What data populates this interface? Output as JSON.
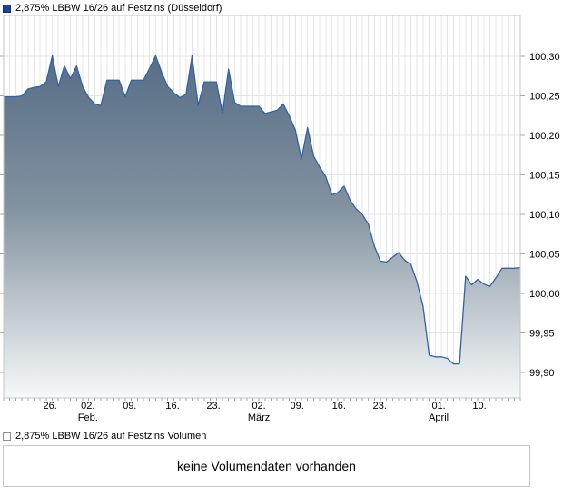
{
  "header": {
    "title": "2,875% LBBW 16/26 auf Festzins (Düsseldorf)"
  },
  "volume": {
    "legend_label": "2,875% LBBW 16/26 auf Festzins Volumen",
    "message": "keine Volumendaten vorhanden"
  },
  "colors": {
    "price_swatch": "#1e419b",
    "price_swatch_border": "#132d74",
    "volume_swatch": "#ffffff",
    "volume_swatch_border": "#8f8f8f",
    "line": "#3263a8",
    "fill_top": "#546c85",
    "fill_mid": "#8292a0",
    "fill_bottom": "#f7f9f9",
    "grid": "#e4e4e4",
    "border": "#c6c6c6",
    "tick": "#a8a8a8",
    "label_text": "#000000"
  },
  "chart_data": {
    "type": "area",
    "title": "2,875% LBBW 16/26 auf Festzins (Düsseldorf)",
    "x_unit": "daily dates, late January to mid April",
    "ylabel": "price (percent)",
    "grid": true,
    "legend_position": "top-left",
    "ylim": [
      99.868,
      100.352
    ],
    "y_ticks": [
      {
        "label": "100,30",
        "value": 100.3
      },
      {
        "label": "100,25",
        "value": 100.25
      },
      {
        "label": "100,20",
        "value": 100.2
      },
      {
        "label": "100,15",
        "value": 100.15
      },
      {
        "label": "100,10",
        "value": 100.1
      },
      {
        "label": "100,05",
        "value": 100.05
      },
      {
        "label": "100,00",
        "value": 100.0
      },
      {
        "label": "99,95",
        "value": 99.95
      },
      {
        "label": "99,90",
        "value": 99.9
      }
    ],
    "x_ticks": [
      {
        "label": "26.",
        "month": "",
        "pos": 0.09
      },
      {
        "label": "02.",
        "month": "Feb.",
        "pos": 0.163
      },
      {
        "label": "09.",
        "month": "",
        "pos": 0.244
      },
      {
        "label": "16.",
        "month": "",
        "pos": 0.327
      },
      {
        "label": "23.",
        "month": "",
        "pos": 0.406
      },
      {
        "label": "02.",
        "month": "März",
        "pos": 0.494
      },
      {
        "label": "09.",
        "month": "",
        "pos": 0.568
      },
      {
        "label": "16.",
        "month": "",
        "pos": 0.649
      },
      {
        "label": "23.",
        "month": "",
        "pos": 0.728
      },
      {
        "label": "01.",
        "month": "April",
        "pos": 0.842
      },
      {
        "label": "10.",
        "month": "",
        "pos": 0.921
      }
    ],
    "series": [
      {
        "name": "2,875% LBBW 16/26 auf Festzins (Düsseldorf)",
        "values": [
          100.249,
          100.249,
          100.249,
          100.25,
          100.259,
          100.261,
          100.262,
          100.268,
          100.301,
          100.262,
          100.288,
          100.272,
          100.288,
          100.262,
          100.248,
          100.24,
          100.238,
          100.27,
          100.27,
          100.27,
          100.249,
          100.27,
          100.27,
          100.27,
          100.285,
          100.301,
          100.28,
          100.262,
          100.254,
          100.248,
          100.252,
          100.301,
          100.238,
          100.268,
          100.268,
          100.268,
          100.228,
          100.284,
          100.242,
          100.237,
          100.237,
          100.237,
          100.237,
          100.228,
          100.23,
          100.232,
          100.24,
          100.225,
          100.207,
          100.17,
          100.21,
          100.174,
          100.16,
          100.148,
          100.125,
          100.128,
          100.136,
          100.118,
          100.107,
          100.1,
          100.088,
          100.06,
          100.041,
          100.04,
          100.046,
          100.052,
          100.042,
          100.037,
          100.015,
          99.984,
          99.922,
          99.92,
          99.92,
          99.918,
          99.911,
          99.911,
          100.022,
          100.011,
          100.018,
          100.012,
          100.009,
          100.02,
          100.032,
          100.032,
          100.032,
          100.033
        ]
      }
    ],
    "volume_note": "keine Volumendaten vorhanden"
  }
}
